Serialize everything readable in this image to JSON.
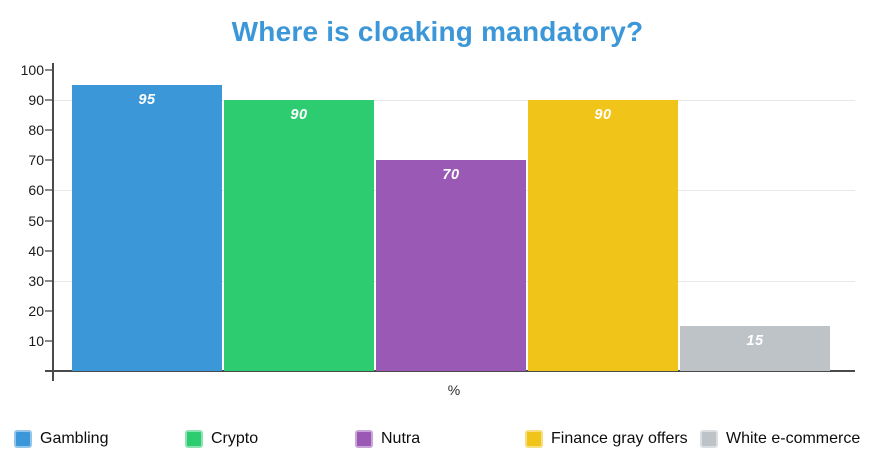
{
  "chart_data": {
    "type": "bar",
    "title": "Where is cloaking mandatory?",
    "title_color": "#3b97d8",
    "xlabel": "%",
    "ylabel": "",
    "ylim": [
      0,
      100
    ],
    "yticks": [
      10,
      20,
      30,
      40,
      50,
      60,
      70,
      80,
      90,
      100
    ],
    "gridline_values": [
      30,
      60,
      90
    ],
    "grid_on": true,
    "grid_color": "#e8e8e8",
    "axis_color": "#4a4a4a",
    "tick_label_color": "#1a1a1a",
    "categories": [
      "Gambling",
      "Crypto",
      "Nutra",
      "Finance gray offers",
      "White e-commerce"
    ],
    "values": [
      95,
      90,
      70,
      90,
      15
    ],
    "bar_colors": [
      "#3b97d8",
      "#2ecc71",
      "#9b59b6",
      "#f0c419",
      "#bec3c7"
    ],
    "bar_label_color": "#ffffff",
    "legend_position": "bottom",
    "legend": [
      {
        "label": "Gambling",
        "color": "#3b97d8"
      },
      {
        "label": "Crypto",
        "color": "#2ecc71"
      },
      {
        "label": "Nutra",
        "color": "#9b59b6"
      },
      {
        "label": "Finance gray offers",
        "color": "#f0c419"
      },
      {
        "label": "White e-commerce",
        "color": "#bec3c7"
      }
    ]
  }
}
